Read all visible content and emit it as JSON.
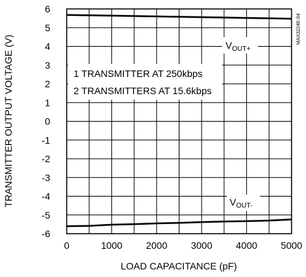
{
  "chart_data": {
    "type": "line",
    "xlabel": "LOAD CAPACITANCE (pF)",
    "ylabel": "TRANSMITTER OUTPUT VOLTAGE (V)",
    "xlim": [
      0,
      5000
    ],
    "ylim": [
      -6,
      6
    ],
    "x_ticks": [
      0,
      1000,
      2000,
      3000,
      4000,
      5000
    ],
    "x_tick_labels": [
      "0",
      "1000",
      "2000",
      "3000",
      "4000",
      "5000"
    ],
    "y_ticks": [
      6,
      5,
      4,
      3,
      2,
      1,
      0,
      -1,
      -2,
      -3,
      -4,
      -5,
      -6
    ],
    "y_tick_labels": [
      "6",
      "5",
      "4",
      "3",
      "2",
      "1",
      "0",
      "-1",
      "-2",
      "-3",
      "-4",
      "-5",
      "-6"
    ],
    "grid": true,
    "annotations": [
      "1 TRANSMITTER AT 250kbps",
      "2 TRANSMITTERS AT 15.6kbps"
    ],
    "watermark": "MAX3224E-04",
    "series": [
      {
        "name": "VOUT+",
        "label_main": "V",
        "label_sub": "OUT+",
        "x": [
          0,
          500,
          1000,
          1500,
          2000,
          2500,
          3000,
          3500,
          4000,
          4500,
          5000
        ],
        "values": [
          5.68,
          5.66,
          5.64,
          5.62,
          5.6,
          5.58,
          5.56,
          5.54,
          5.52,
          5.5,
          5.48
        ]
      },
      {
        "name": "VOUT-",
        "label_main": "V",
        "label_sub": "OUT-",
        "x": [
          0,
          500,
          1000,
          1500,
          2000,
          2500,
          3000,
          3500,
          4000,
          4500,
          5000
        ],
        "values": [
          -5.6,
          -5.58,
          -5.52,
          -5.49,
          -5.45,
          -5.42,
          -5.38,
          -5.35,
          -5.33,
          -5.3,
          -5.24
        ]
      }
    ],
    "colors": {
      "line": "#000000",
      "grid": "#000000",
      "background": "#ffffff"
    }
  }
}
